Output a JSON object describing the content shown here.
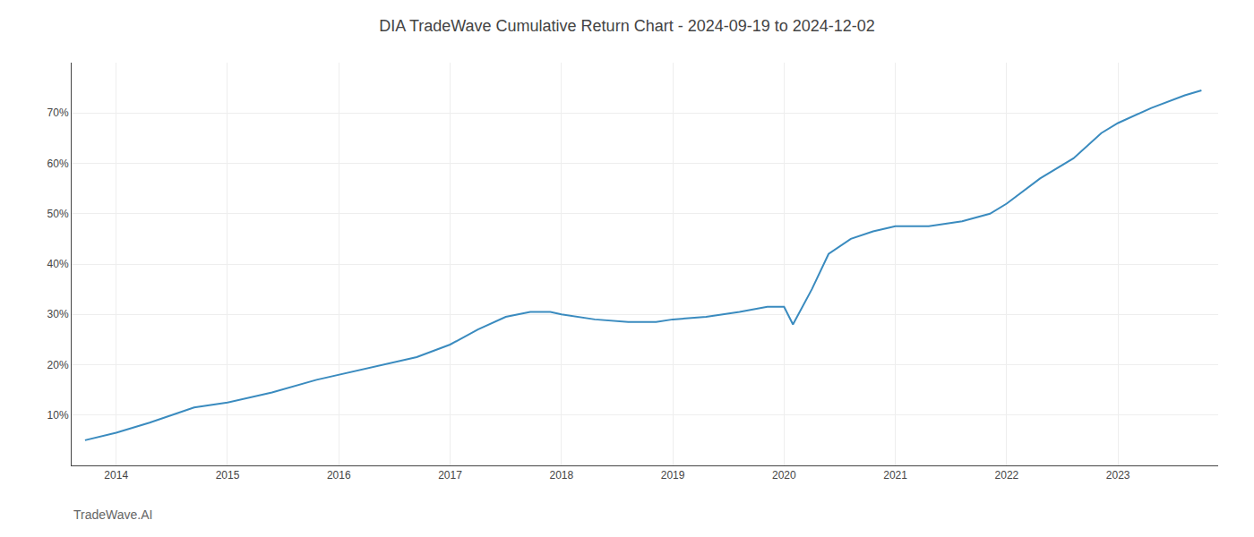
{
  "chart_data": {
    "type": "line",
    "title": "DIA TradeWave Cumulative Return Chart - 2024-09-19 to 2024-12-02",
    "annotations": [
      {
        "text": "TradeWave.AI"
      }
    ],
    "x": [
      2013.72,
      2014.0,
      2014.3,
      2014.7,
      2015.0,
      2015.4,
      2015.8,
      2016.0,
      2016.3,
      2016.7,
      2017.0,
      2017.25,
      2017.5,
      2017.72,
      2017.9,
      2018.0,
      2018.3,
      2018.6,
      2018.85,
      2019.0,
      2019.3,
      2019.6,
      2019.85,
      2020.0,
      2020.08,
      2020.25,
      2020.4,
      2020.6,
      2020.8,
      2021.0,
      2021.3,
      2021.6,
      2021.85,
      2022.0,
      2022.3,
      2022.6,
      2022.85,
      2023.0,
      2023.3,
      2023.6,
      2023.75
    ],
    "values": [
      5.0,
      6.5,
      8.5,
      11.5,
      12.5,
      14.5,
      17.0,
      18.0,
      19.5,
      21.5,
      24.0,
      27.0,
      29.5,
      30.5,
      30.5,
      30.0,
      29.0,
      28.5,
      28.5,
      29.0,
      29.5,
      30.5,
      31.5,
      31.5,
      28.0,
      35.0,
      42.0,
      45.0,
      46.5,
      47.5,
      47.5,
      48.5,
      50.0,
      52.0,
      57.0,
      61.0,
      66.0,
      68.0,
      71.0,
      73.5,
      74.5
    ],
    "color": "#3a8bbf",
    "xlim": [
      2013.6,
      2023.9
    ],
    "xticks": [
      2014,
      2015,
      2016,
      2017,
      2018,
      2019,
      2020,
      2021,
      2022,
      2023
    ],
    "ylim": [
      0,
      80
    ],
    "yticks": [
      {
        "value": 10,
        "label": "10%"
      },
      {
        "value": 20,
        "label": "20%"
      },
      {
        "value": 30,
        "label": "30%"
      },
      {
        "value": 40,
        "label": "40%"
      },
      {
        "value": 50,
        "label": "50%"
      },
      {
        "value": 60,
        "label": "60%"
      },
      {
        "value": 70,
        "label": "70%"
      }
    ],
    "grid": true
  }
}
